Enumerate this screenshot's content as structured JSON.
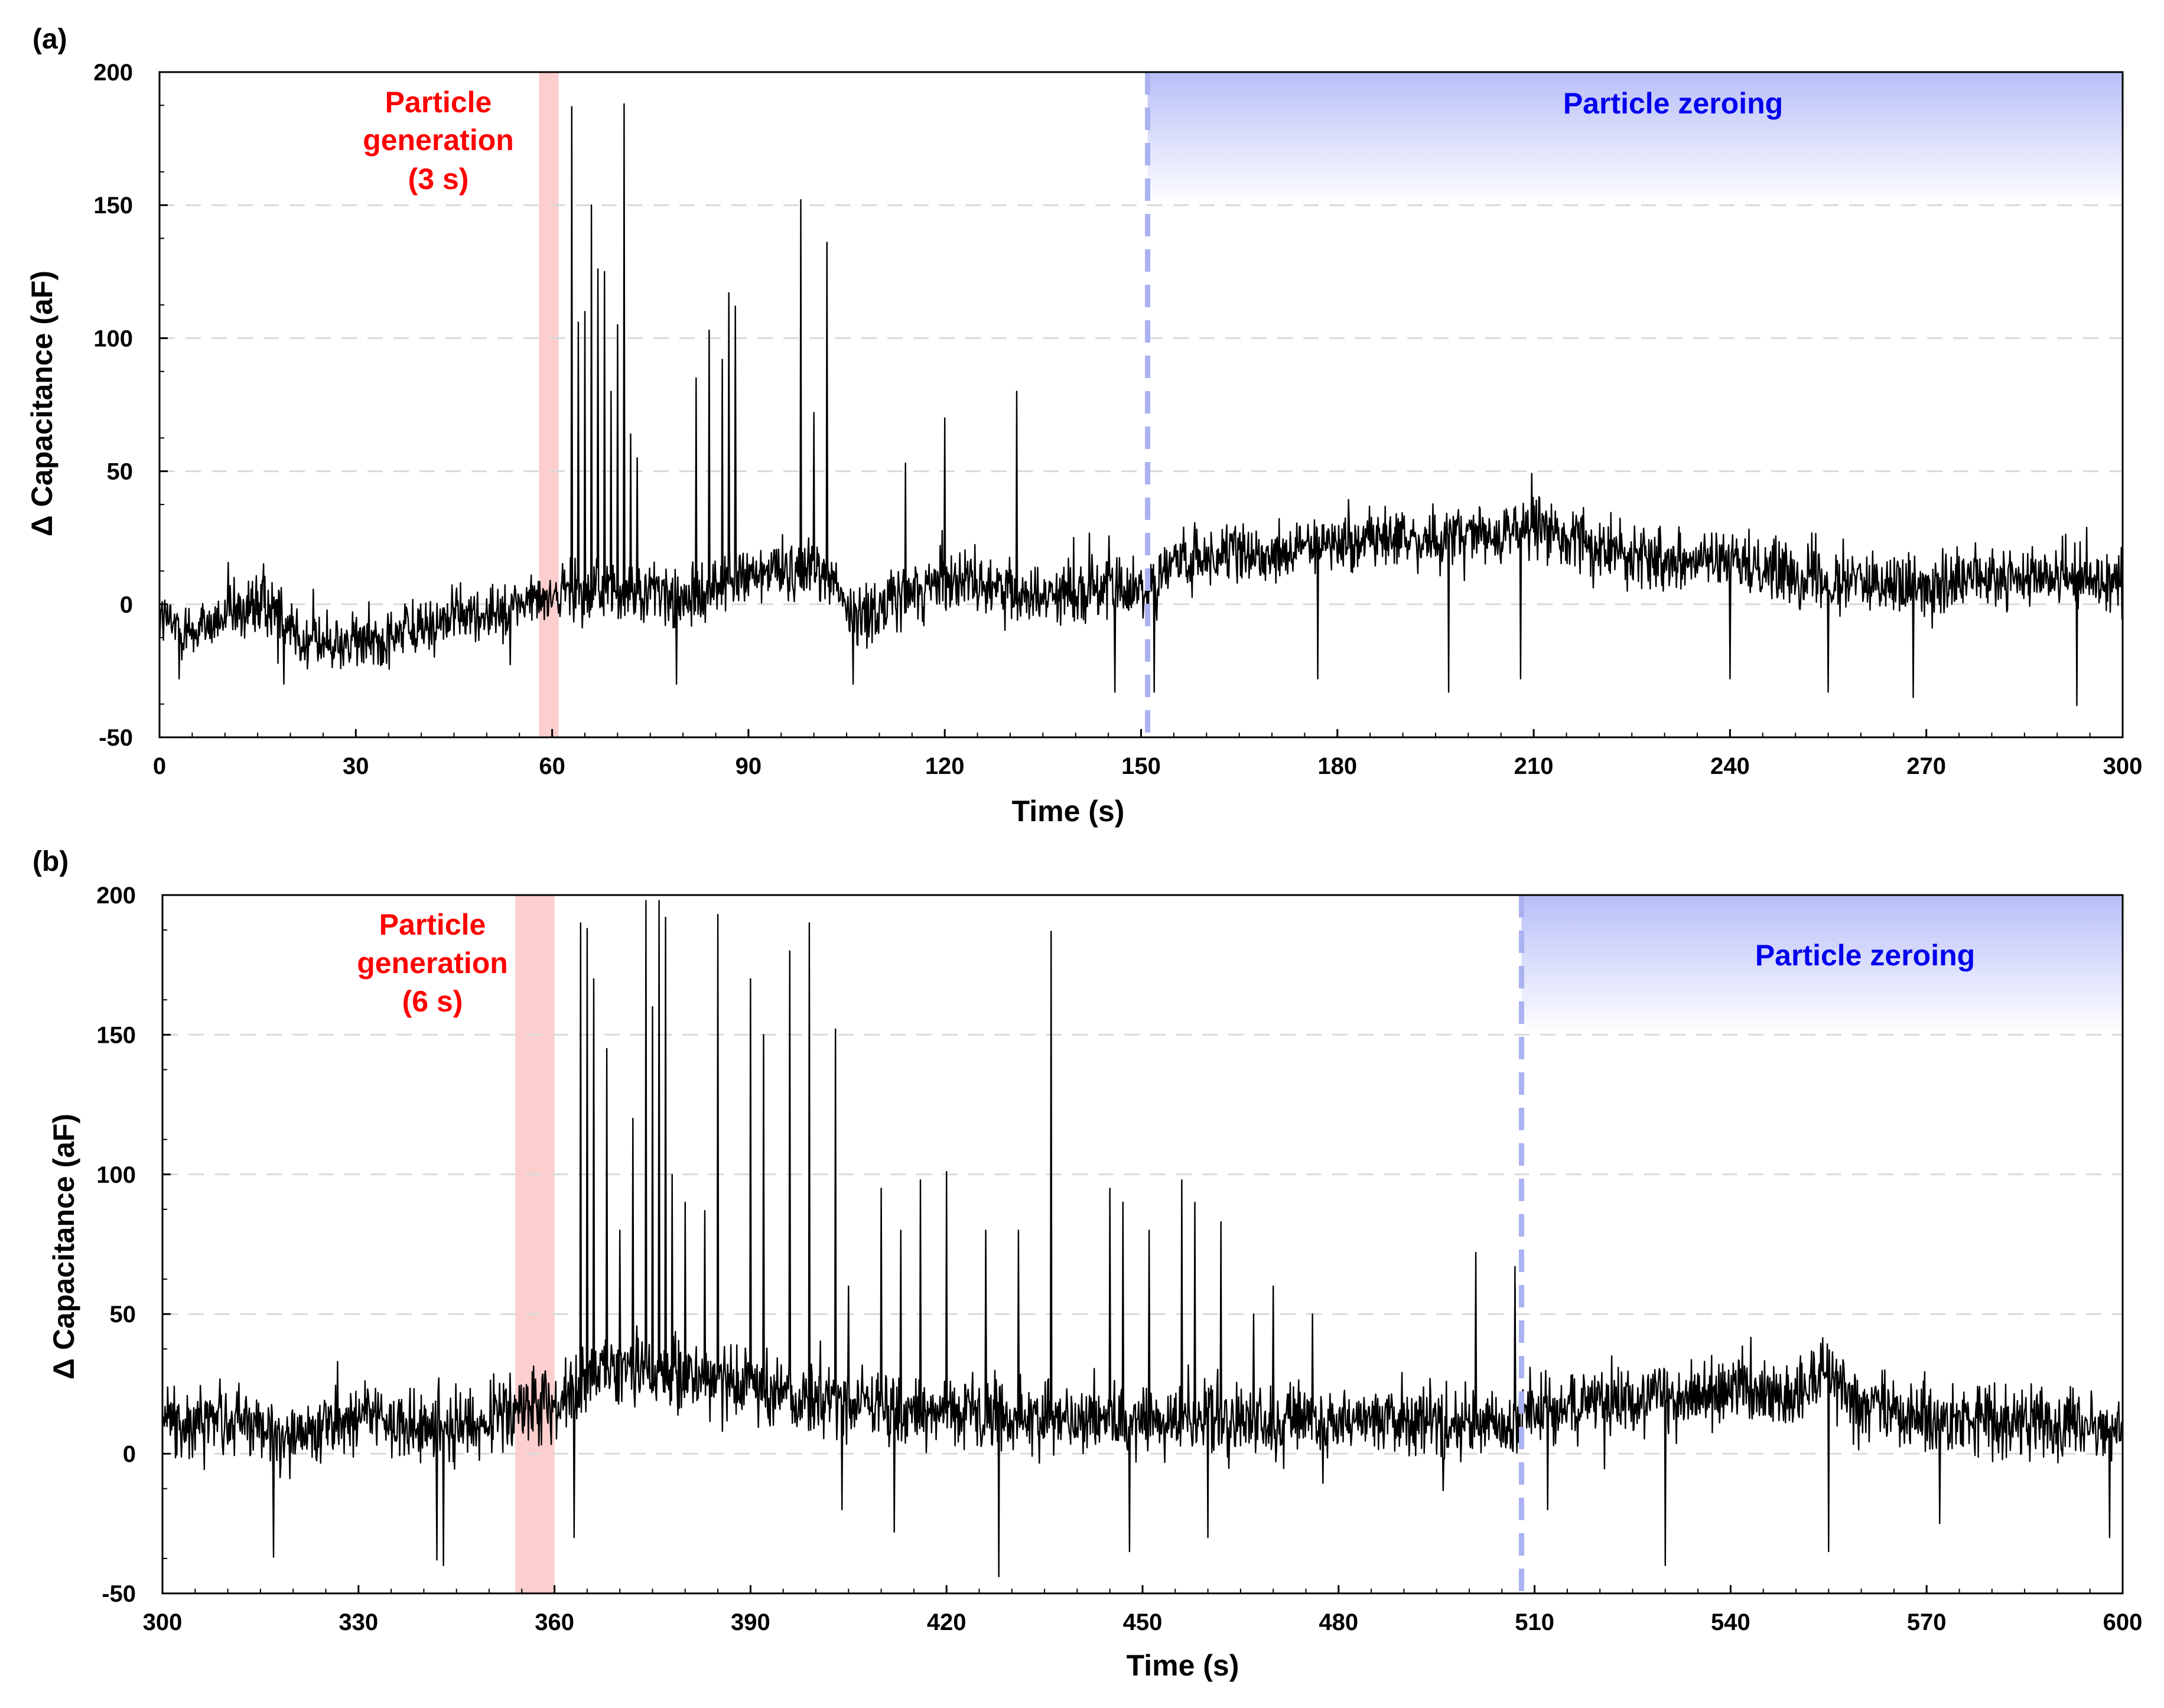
{
  "colors": {
    "signal": "#000000",
    "generation_band": "#f9a6a6",
    "generation_text": "#ff0000",
    "zeroing_line": "#aab2f2",
    "zeroing_fill": "#b8bff7",
    "zeroing_text": "#0000ee",
    "grid": "#d9d9d9"
  },
  "chart_data": [
    {
      "type": "line",
      "panel_label": "(a)",
      "xlabel": "Time (s)",
      "ylabel": "Δ Capacitance (aF)",
      "xlim": [
        0,
        300
      ],
      "ylim": [
        -50,
        200
      ],
      "xticks": [
        0,
        30,
        60,
        90,
        120,
        150,
        180,
        210,
        240,
        270,
        300
      ],
      "yticks": [
        -50,
        0,
        50,
        100,
        150,
        200
      ],
      "grid": "horizontal dashed",
      "generation": {
        "start": 58,
        "end": 61,
        "label_lines": [
          "Particle",
          "generation",
          "(3 s)"
        ]
      },
      "zeroing": {
        "start": 151,
        "label": "Particle zeroing"
      },
      "baseline": [
        [
          0,
          -5
        ],
        [
          5,
          -10
        ],
        [
          15,
          0
        ],
        [
          20,
          -5
        ],
        [
          22,
          -15
        ],
        [
          30,
          -15
        ],
        [
          45,
          -5
        ],
        [
          55,
          0
        ],
        [
          62,
          5
        ],
        [
          75,
          5
        ],
        [
          80,
          0
        ],
        [
          88,
          10
        ],
        [
          100,
          15
        ],
        [
          103,
          10
        ],
        [
          106,
          -5
        ],
        [
          115,
          5
        ],
        [
          120,
          10
        ],
        [
          130,
          5
        ],
        [
          150,
          5
        ],
        [
          155,
          15
        ],
        [
          170,
          20
        ],
        [
          185,
          25
        ],
        [
          200,
          25
        ],
        [
          210,
          30
        ],
        [
          220,
          20
        ],
        [
          240,
          15
        ],
        [
          255,
          10
        ],
        [
          270,
          5
        ],
        [
          280,
          10
        ],
        [
          300,
          10
        ]
      ],
      "noise_amplitude": 10,
      "spikes": [
        [
          63,
          187
        ],
        [
          64,
          106
        ],
        [
          65,
          110
        ],
        [
          66,
          150
        ],
        [
          67,
          126
        ],
        [
          68,
          125
        ],
        [
          69,
          80
        ],
        [
          70,
          105
        ],
        [
          71,
          188
        ],
        [
          72,
          64
        ],
        [
          73,
          55
        ],
        [
          82,
          85
        ],
        [
          84,
          103
        ],
        [
          86,
          92
        ],
        [
          87,
          117
        ],
        [
          88,
          112
        ],
        [
          98,
          152
        ],
        [
          100,
          72
        ],
        [
          102,
          136
        ],
        [
          114,
          53
        ],
        [
          120,
          70
        ],
        [
          131,
          80
        ]
      ],
      "dips": [
        [
          3,
          -28
        ],
        [
          19,
          -30
        ],
        [
          79,
          -30
        ],
        [
          106,
          -30
        ],
        [
          146,
          -33
        ],
        [
          152,
          -33
        ],
        [
          177,
          -28
        ],
        [
          197,
          -33
        ],
        [
          208,
          -28
        ],
        [
          240,
          -28
        ],
        [
          255,
          -33
        ],
        [
          268,
          -35
        ],
        [
          293,
          -38
        ]
      ]
    },
    {
      "type": "line",
      "panel_label": "(b)",
      "xlabel": "Time (s)",
      "ylabel": "Δ Capacitance (aF)",
      "xlim": [
        300,
        600
      ],
      "ylim": [
        -50,
        200
      ],
      "xticks": [
        300,
        330,
        360,
        390,
        420,
        450,
        480,
        510,
        540,
        570,
        600
      ],
      "yticks": [
        -50,
        0,
        50,
        100,
        150,
        200
      ],
      "grid": "horizontal dashed",
      "generation": {
        "start": 354,
        "end": 360,
        "label_lines": [
          "Particle",
          "generation",
          "(6 s)"
        ]
      },
      "zeroing": {
        "start": 508,
        "label": "Particle zeroing"
      },
      "baseline": [
        [
          300,
          12
        ],
        [
          315,
          10
        ],
        [
          318,
          5
        ],
        [
          330,
          12
        ],
        [
          340,
          10
        ],
        [
          345,
          8
        ],
        [
          355,
          15
        ],
        [
          362,
          20
        ],
        [
          365,
          30
        ],
        [
          380,
          28
        ],
        [
          390,
          25
        ],
        [
          400,
          18
        ],
        [
          420,
          15
        ],
        [
          450,
          12
        ],
        [
          480,
          12
        ],
        [
          505,
          10
        ],
        [
          510,
          15
        ],
        [
          520,
          18
        ],
        [
          540,
          22
        ],
        [
          550,
          20
        ],
        [
          555,
          30
        ],
        [
          560,
          15
        ],
        [
          580,
          12
        ],
        [
          600,
          8
        ]
      ],
      "noise_amplitude": 11,
      "spikes": [
        [
          364,
          190
        ],
        [
          365,
          188
        ],
        [
          366,
          170
        ],
        [
          368,
          145
        ],
        [
          370,
          80
        ],
        [
          372,
          120
        ],
        [
          374,
          198
        ],
        [
          375,
          160
        ],
        [
          376,
          198
        ],
        [
          377,
          192
        ],
        [
          378,
          100
        ],
        [
          380,
          90
        ],
        [
          383,
          87
        ],
        [
          385,
          193
        ],
        [
          390,
          170
        ],
        [
          392,
          150
        ],
        [
          396,
          180
        ],
        [
          399,
          190
        ],
        [
          403,
          152
        ],
        [
          405,
          60
        ],
        [
          410,
          95
        ],
        [
          413,
          80
        ],
        [
          416,
          98
        ],
        [
          420,
          101
        ],
        [
          426,
          80
        ],
        [
          431,
          80
        ],
        [
          436,
          187
        ],
        [
          445,
          95
        ],
        [
          447,
          90
        ],
        [
          451,
          80
        ],
        [
          456,
          98
        ],
        [
          458,
          90
        ],
        [
          462,
          83
        ],
        [
          467,
          50
        ],
        [
          470,
          60
        ],
        [
          476,
          50
        ],
        [
          501,
          72
        ],
        [
          507,
          67
        ]
      ],
      "dips": [
        [
          317,
          -37
        ],
        [
          342,
          -38
        ],
        [
          343,
          -40
        ],
        [
          363,
          -30
        ],
        [
          404,
          -20
        ],
        [
          412,
          -28
        ],
        [
          428,
          -44
        ],
        [
          448,
          -35
        ],
        [
          460,
          -30
        ],
        [
          512,
          -20
        ],
        [
          530,
          -40
        ],
        [
          555,
          -35
        ],
        [
          572,
          -25
        ],
        [
          598,
          -30
        ]
      ]
    }
  ]
}
